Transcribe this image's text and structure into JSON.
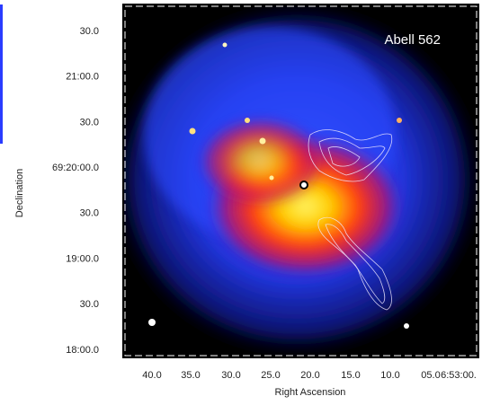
{
  "figure": {
    "label": "Abell 562",
    "x_axis": {
      "title": "Right Ascension",
      "ticks": [
        "40.0",
        "35.0",
        "30.0",
        "25.0",
        "20.0",
        "15.0",
        "10.0",
        "05.0",
        "6:53:00."
      ]
    },
    "y_axis": {
      "title": "Declination",
      "ticks": [
        "30.0",
        "21:00.0",
        "30.0",
        "69:20:00.0",
        "30.0",
        "19:00.0",
        "30.0",
        "18:00.0"
      ]
    }
  }
}
